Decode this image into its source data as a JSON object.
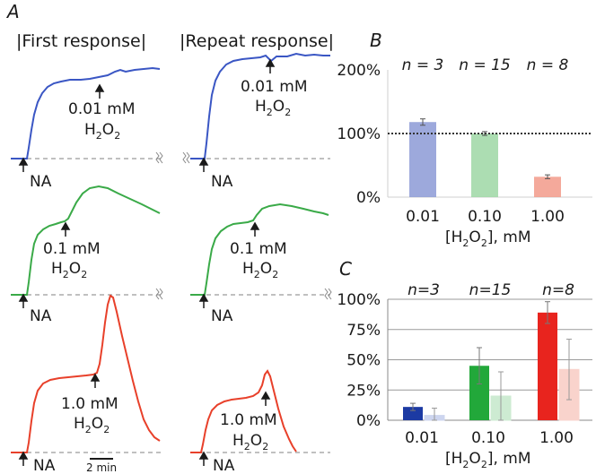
{
  "panel_a": {
    "letter": "A",
    "header_first": "|First response|",
    "header_repeat": "|Repeat response|",
    "na_label": "NA",
    "scale_label": "2 min",
    "rows": [
      {
        "conc": "0.01 mM",
        "color": "#3a56c4",
        "agent_main": "H",
        "sub1": "2",
        "mid": "O",
        "sub2": "2"
      },
      {
        "conc": "0.1 mM",
        "color": "#3aaa48",
        "agent_main": "H",
        "sub1": "2",
        "mid": "O",
        "sub2": "2"
      },
      {
        "conc": "1.0 mM",
        "color": "#e8402a",
        "agent_main": "H",
        "sub1": "2",
        "mid": "O",
        "sub2": "2"
      }
    ]
  },
  "chart_data": [
    {
      "type": "bar",
      "panel": "B",
      "categories": [
        "0.01",
        "0.10",
        "1.00"
      ],
      "n_labels": [
        "n = 3",
        "n = 15",
        "n = 8"
      ],
      "values": [
        118,
        100,
        32
      ],
      "errors": [
        5,
        3,
        3
      ],
      "colors": [
        "#8c9ad6",
        "#9ed7a5",
        "#f29a8a"
      ],
      "ylim": [
        0,
        200
      ],
      "yticks": [
        "0%",
        "100%",
        "200%"
      ],
      "reference_line": 100,
      "xlabel": "[H2O2], mM"
    },
    {
      "type": "bar",
      "panel": "C",
      "categories": [
        "0.01",
        "0.10",
        "1.00"
      ],
      "n_labels": [
        "n=3",
        "n=15",
        "n=8"
      ],
      "series": [
        {
          "values": [
            11,
            45,
            89
          ],
          "errors": [
            3,
            15,
            9
          ],
          "colors": [
            "#1c3aa3",
            "#22a83a",
            "#e8241e"
          ]
        },
        {
          "values": [
            4,
            20,
            42
          ],
          "errors": [
            6,
            20,
            25
          ],
          "colors": [
            "#cdd5ef",
            "#cdebd2",
            "#f9d3cc"
          ]
        }
      ],
      "ylim": [
        0,
        100
      ],
      "yticks": [
        "0%",
        "25%",
        "50%",
        "75%",
        "100%"
      ],
      "grid": true,
      "xlabel": "[H2O2], mM"
    }
  ]
}
